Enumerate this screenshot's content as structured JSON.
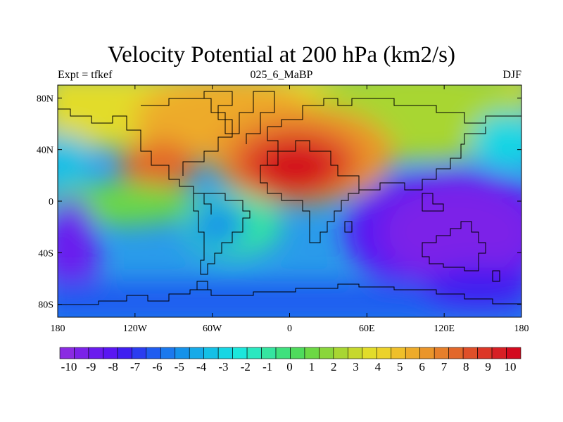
{
  "title": "Velocity Potential at 200 hPa (km2/s)",
  "left_label": "Expt = tfkef",
  "center_label": "025_6_MaBP",
  "right_label": "DJF",
  "axes": {
    "x_ticks": [
      "180",
      "120W",
      "60W",
      "0",
      "60E",
      "120E",
      "180"
    ],
    "y_ticks": [
      "80N",
      "40N",
      "0",
      "40S",
      "80S"
    ]
  },
  "colorbar": {
    "labels": [
      "-10",
      "-9",
      "-8",
      "-7",
      "-6",
      "-5",
      "-4",
      "-3",
      "-2",
      "-1",
      "0",
      "1",
      "2",
      "3",
      "4",
      "5",
      "6",
      "7",
      "8",
      "9",
      "10"
    ],
    "colors": [
      "#8a2be2",
      "#7b22e8",
      "#6a1bee",
      "#5a16f2",
      "#3f1ef0",
      "#2b3df0",
      "#1f5cf0",
      "#1b79ee",
      "#1592ea",
      "#16aae8",
      "#14c0e6",
      "#16d6e4",
      "#1ce7dc",
      "#2ae8c0",
      "#35e5a0",
      "#3fe07d",
      "#4fdb5c",
      "#6cd844",
      "#8ad63b",
      "#a8d632",
      "#c6d82d",
      "#e2dc2a",
      "#ecd22a",
      "#efbf2a",
      "#edab2a",
      "#ea952a",
      "#e67f2a",
      "#e2672a",
      "#df4f29",
      "#dc3727",
      "#d71f24",
      "#d30a1e"
    ]
  },
  "map": {
    "projection": "cylindrical-equidistant",
    "lon_range": [
      -180,
      180
    ],
    "lat_range": [
      -90,
      90
    ],
    "field_centers": [
      {
        "lon": 0,
        "lat": 28,
        "value": 10
      },
      {
        "lon": -120,
        "lat": 26,
        "value": 8
      },
      {
        "lon": -50,
        "lat": 72,
        "value": 6
      },
      {
        "lon": 160,
        "lat": 60,
        "value": 5
      },
      {
        "lon": 130,
        "lat": 0,
        "value": -10
      },
      {
        "lon": 160,
        "lat": -55,
        "value": -9
      },
      {
        "lon": -172,
        "lat": -25,
        "value": -10
      },
      {
        "lon": -60,
        "lat": -28,
        "value": 0
      },
      {
        "lon": 0,
        "lat": -70,
        "value": -6
      },
      {
        "lon": -170,
        "lat": 25,
        "value": -2
      }
    ]
  }
}
